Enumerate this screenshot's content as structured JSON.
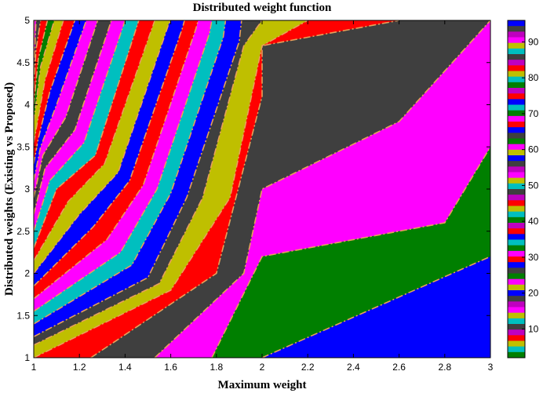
{
  "chart_data": {
    "type": "contourf",
    "title": "Distributed weight function",
    "xlabel": "Maximum weight",
    "ylabel": "Distributed weights (Existing vs Proposed)",
    "xlim": [
      1,
      3
    ],
    "ylim": [
      1,
      5
    ],
    "xticks": [
      "1",
      "1.2",
      "1.4",
      "1.6",
      "1.8",
      "2",
      "2.2",
      "2.4",
      "2.6",
      "2.8",
      "3"
    ],
    "yticks": [
      "1",
      "1.5",
      "2",
      "2.5",
      "3",
      "3.5",
      "4",
      "4.5",
      "5"
    ],
    "colorbar": {
      "ticks": [
        "10",
        "20",
        "30",
        "40",
        "50",
        "60",
        "70",
        "80",
        "90"
      ],
      "range": [
        2,
        96
      ],
      "colors": [
        "#0000ff",
        "#007f00",
        "#ff0000",
        "#00bfbf",
        "#bf00bf",
        "#bfbf00",
        "#3f3f3f",
        "#ff00ff"
      ]
    },
    "bands": [
      {
        "color": "#0000ff",
        "boundary": [
          [
            2.0,
            1.0
          ],
          [
            2.8,
            1.96
          ],
          [
            3.0,
            2.2
          ]
        ]
      },
      {
        "color": "#007f00",
        "boundary": [
          [
            1.78,
            1.0
          ],
          [
            2.0,
            2.2
          ],
          [
            2.8,
            2.6
          ],
          [
            3.0,
            3.5
          ]
        ]
      },
      {
        "color": "#ff00ff",
        "boundary": [
          [
            1.53,
            1.0
          ],
          [
            1.92,
            2.0
          ],
          [
            2.0,
            3.0
          ],
          [
            2.6,
            3.8
          ],
          [
            3.0,
            5.0
          ]
        ]
      },
      {
        "color": "#3f3f3f",
        "boundary": [
          [
            1.25,
            1.0
          ],
          [
            1.8,
            2.0
          ],
          [
            2.0,
            4.1
          ],
          [
            2.0,
            4.7
          ],
          [
            2.6,
            5.0
          ]
        ]
      },
      {
        "color": "#ff0000",
        "boundary": [
          [
            1.0,
            1.0
          ],
          [
            1.6,
            1.8
          ],
          [
            1.86,
            2.9
          ],
          [
            2.0,
            4.7
          ],
          [
            2.2,
            5.0
          ]
        ]
      },
      {
        "color": "#bfbf00",
        "boundary": [
          [
            1.0,
            1.15
          ],
          [
            1.55,
            1.88
          ],
          [
            1.74,
            2.9
          ],
          [
            1.92,
            4.7
          ],
          [
            2.0,
            5.0
          ]
        ]
      },
      {
        "color": "#3f3f3f",
        "boundary": [
          [
            1.0,
            1.25
          ],
          [
            1.5,
            1.95
          ],
          [
            1.67,
            2.9
          ],
          [
            1.9,
            4.75
          ],
          [
            1.91,
            5.0
          ]
        ]
      },
      {
        "color": "#0000ff",
        "boundary": [
          [
            1.0,
            1.4
          ],
          [
            1.43,
            2.1
          ],
          [
            1.6,
            2.95
          ],
          [
            1.83,
            4.8
          ],
          [
            1.84,
            5.0
          ]
        ]
      },
      {
        "color": "#00bfbf",
        "boundary": [
          [
            1.0,
            1.55
          ],
          [
            1.38,
            2.25
          ],
          [
            1.54,
            3.0
          ],
          [
            1.77,
            4.85
          ],
          [
            1.78,
            5.0
          ]
        ]
      },
      {
        "color": "#ff00ff",
        "boundary": [
          [
            1.0,
            1.7
          ],
          [
            1.32,
            2.4
          ],
          [
            1.48,
            3.05
          ],
          [
            1.71,
            4.9
          ],
          [
            1.72,
            5.0
          ]
        ]
      },
      {
        "color": "#ff0000",
        "boundary": [
          [
            1.0,
            1.85
          ],
          [
            1.26,
            2.55
          ],
          [
            1.42,
            3.1
          ],
          [
            1.65,
            4.9
          ],
          [
            1.66,
            5.0
          ]
        ]
      },
      {
        "color": "#0000ff",
        "boundary": [
          [
            1.0,
            2.0
          ],
          [
            1.2,
            2.7
          ],
          [
            1.37,
            3.2
          ],
          [
            1.59,
            4.95
          ],
          [
            1.6,
            5.0
          ]
        ]
      },
      {
        "color": "#bfbf00",
        "boundary": [
          [
            1.0,
            2.15
          ],
          [
            1.15,
            2.85
          ],
          [
            1.31,
            3.3
          ],
          [
            1.53,
            5.0
          ]
        ]
      },
      {
        "color": "#ff0000",
        "boundary": [
          [
            1.0,
            2.3
          ],
          [
            1.1,
            3.0
          ],
          [
            1.27,
            3.4
          ],
          [
            1.46,
            5.0
          ]
        ]
      },
      {
        "color": "#00bfbf",
        "boundary": [
          [
            1.0,
            2.5
          ],
          [
            1.07,
            3.1
          ],
          [
            1.22,
            3.55
          ],
          [
            1.4,
            5.0
          ]
        ]
      },
      {
        "color": "#ff00ff",
        "boundary": [
          [
            1.0,
            2.7
          ],
          [
            1.05,
            3.25
          ],
          [
            1.18,
            3.7
          ],
          [
            1.34,
            5.0
          ]
        ]
      },
      {
        "color": "#3f3f3f",
        "boundary": [
          [
            1.0,
            2.9
          ],
          [
            1.04,
            3.4
          ],
          [
            1.14,
            3.85
          ],
          [
            1.28,
            5.0
          ]
        ]
      },
      {
        "color": "#ff00ff",
        "boundary": [
          [
            1.0,
            3.1
          ],
          [
            1.03,
            3.5
          ],
          [
            1.1,
            4.0
          ],
          [
            1.23,
            5.0
          ]
        ]
      },
      {
        "color": "#0000ff",
        "boundary": [
          [
            1.0,
            3.3
          ],
          [
            1.02,
            3.6
          ],
          [
            1.07,
            4.15
          ],
          [
            1.18,
            5.0
          ]
        ]
      },
      {
        "color": "#ff0000",
        "boundary": [
          [
            1.0,
            3.55
          ],
          [
            1.05,
            4.3
          ],
          [
            1.13,
            5.0
          ]
        ]
      },
      {
        "color": "#bfbf00",
        "boundary": [
          [
            1.0,
            3.8
          ],
          [
            1.03,
            4.45
          ],
          [
            1.09,
            5.0
          ]
        ]
      },
      {
        "color": "#007f00",
        "boundary": [
          [
            1.0,
            4.0
          ],
          [
            1.02,
            4.55
          ],
          [
            1.06,
            5.0
          ]
        ]
      },
      {
        "color": "#ff0000",
        "boundary": [
          [
            1.0,
            4.2
          ],
          [
            1.01,
            4.65
          ],
          [
            1.03,
            5.0
          ]
        ]
      },
      {
        "color": "#3f3f3f",
        "boundary": [
          [
            1.0,
            4.4
          ],
          [
            1.01,
            5.0
          ]
        ]
      },
      {
        "color": "#ff00ff",
        "boundary": [
          [
            1.0,
            4.6
          ],
          [
            1.0,
            5.0
          ]
        ]
      },
      {
        "color": "#bfbf00",
        "boundary": [
          [
            1.0,
            4.8
          ],
          [
            1.0,
            5.0
          ]
        ]
      }
    ]
  }
}
